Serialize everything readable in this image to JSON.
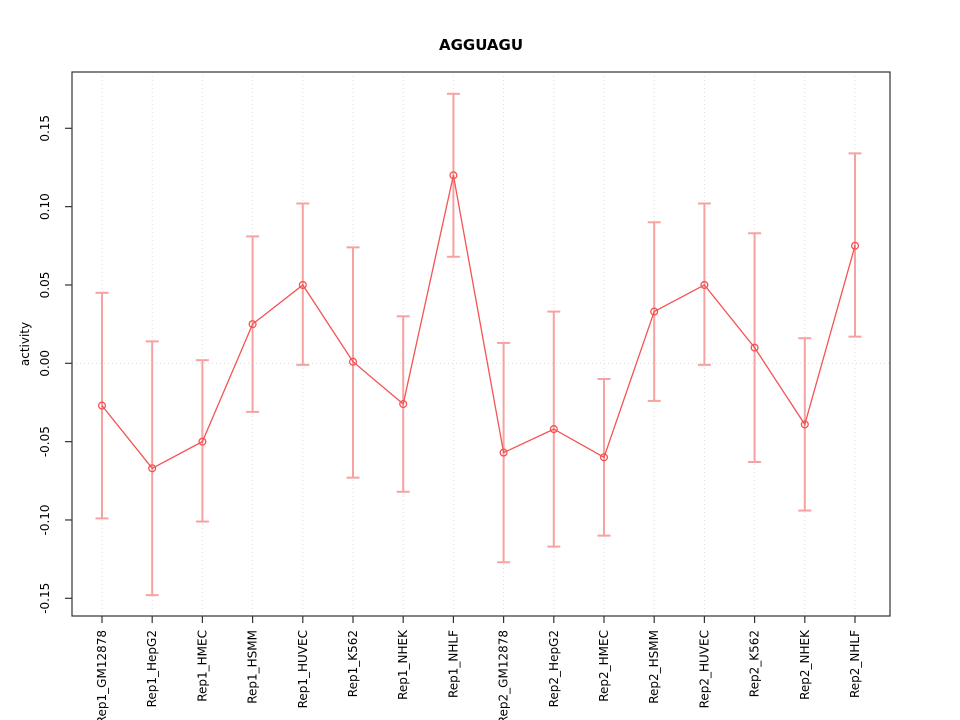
{
  "chart_data": {
    "type": "line",
    "title": "AGGUAGU",
    "xlabel": "",
    "ylabel": "activity",
    "legend_position": "none",
    "grid": "dotted light-gray vertical line at each category; dotted horizontal line at y=0",
    "marker": "open-circle",
    "error_bars": true,
    "categories": [
      "Rep1_GM12878",
      "Rep1_HepG2",
      "Rep1_HMEC",
      "Rep1_HSMM",
      "Rep1_HUVEC",
      "Rep1_K562",
      "Rep1_NHEK",
      "Rep1_NHLF",
      "Rep2_GM12878",
      "Rep2_HepG2",
      "Rep2_HMEC",
      "Rep2_HSMM",
      "Rep2_HUVEC",
      "Rep2_K562",
      "Rep2_NHEK",
      "Rep2_NHLF"
    ],
    "series": [
      {
        "name": "activity",
        "values": [
          -0.027,
          -0.067,
          -0.05,
          0.025,
          0.05,
          0.001,
          -0.026,
          0.12,
          -0.057,
          -0.042,
          -0.06,
          0.033,
          0.05,
          0.01,
          -0.039,
          0.075
        ],
        "err_high": [
          0.045,
          0.014,
          0.002,
          0.081,
          0.102,
          0.074,
          0.03,
          0.172,
          0.013,
          0.033,
          -0.01,
          0.09,
          0.102,
          0.083,
          0.016,
          0.134
        ],
        "err_low": [
          -0.099,
          -0.148,
          -0.101,
          -0.031,
          -0.001,
          -0.073,
          -0.082,
          0.068,
          -0.127,
          -0.117,
          -0.11,
          -0.024,
          -0.001,
          -0.063,
          -0.094,
          0.017
        ]
      }
    ],
    "yticks": [
      -0.15,
      -0.1,
      -0.05,
      0.0,
      0.05,
      0.1,
      0.15
    ],
    "ytick_labels": [
      "-0.15",
      "-0.10",
      "-0.05",
      "0.00",
      "0.05",
      "0.10",
      "0.15"
    ],
    "ylim": [
      -0.161,
      0.186
    ],
    "colors": {
      "line": "#f45353",
      "point": "#f45353",
      "error_bar": "#f7a2a2",
      "grid": "#dcdcdc",
      "axis": "#333333",
      "title": "#000000"
    }
  }
}
